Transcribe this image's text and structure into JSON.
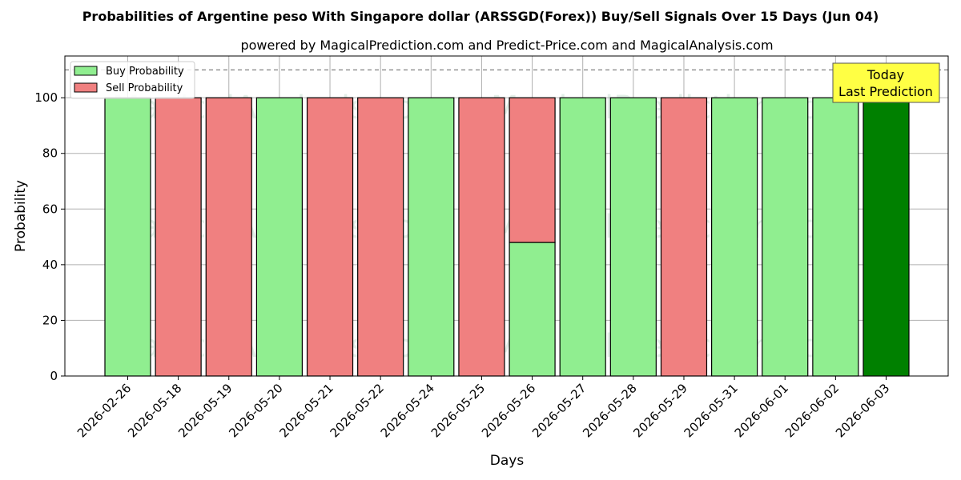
{
  "chart_data": {
    "type": "bar",
    "stacked": true,
    "title": "Probabilities of Argentine peso With Singapore dollar (ARSSGD(Forex)) Buy/Sell Signals Over 15 Days (Jun 04)",
    "subtitle": "powered by MagicalPrediction.com and Predict-Price.com and MagicalAnalysis.com",
    "xlabel": "Days",
    "ylabel": "Probability",
    "ylim": [
      0,
      115
    ],
    "yticks": [
      0,
      20,
      40,
      60,
      80,
      100
    ],
    "reference_line": 110,
    "grid": true,
    "legend_position": "top-left",
    "categories": [
      "2026-02-26",
      "2026-05-18",
      "2026-05-19",
      "2026-05-20",
      "2026-05-21",
      "2026-05-22",
      "2026-05-24",
      "2026-05-25",
      "2026-05-26",
      "2026-05-27",
      "2026-05-28",
      "2026-05-29",
      "2026-05-31",
      "2026-06-01",
      "2026-06-02",
      "2026-06-03"
    ],
    "series": [
      {
        "name": "Buy Probability",
        "color": "#90ee90",
        "values": [
          100,
          0,
          0,
          100,
          0,
          0,
          100,
          0,
          48,
          100,
          100,
          0,
          100,
          100,
          100,
          100
        ]
      },
      {
        "name": "Sell Probability",
        "color": "#f08080",
        "values": [
          0,
          100,
          100,
          0,
          100,
          100,
          0,
          100,
          52,
          0,
          0,
          100,
          0,
          0,
          0,
          0
        ]
      }
    ],
    "highlight": {
      "index": 15,
      "color": "#008000"
    },
    "annotation": {
      "lines": [
        "Today",
        "Last Prediction"
      ],
      "bg": "#ffff44"
    },
    "watermarks": [
      "MagicalAnalysis.com",
      "MagicalPrediction.com"
    ]
  }
}
